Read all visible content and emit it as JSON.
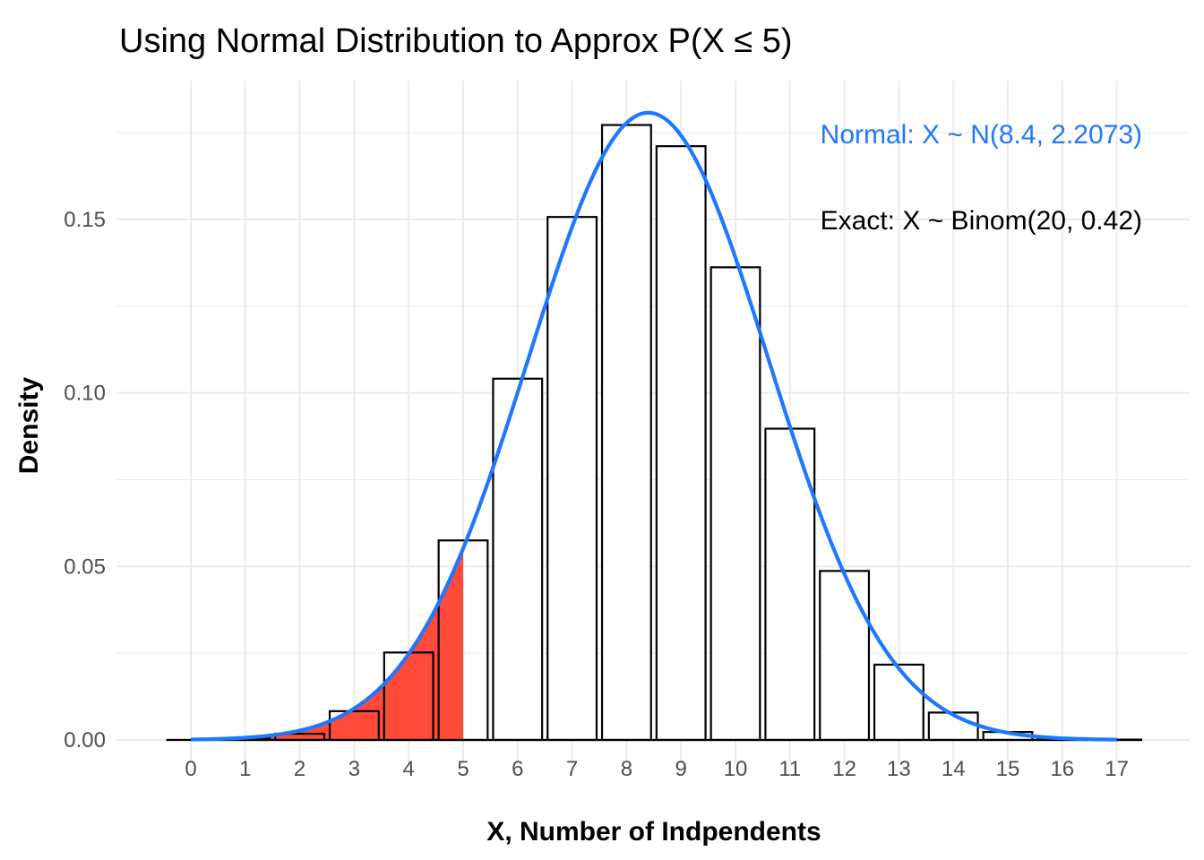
{
  "chart_data": {
    "type": "bar",
    "title": "Using Normal Distribution to Approx P(X ≤ 5)",
    "xlabel": "X, Number of Indpendents",
    "ylabel": "Density",
    "categories": [
      "0",
      "1",
      "2",
      "3",
      "4",
      "5",
      "6",
      "7",
      "8",
      "9",
      "10",
      "11",
      "12",
      "13",
      "14",
      "15",
      "16",
      "17"
    ],
    "values": [
      0.0,
      0.0005,
      0.0018,
      0.0083,
      0.0252,
      0.0575,
      0.1041,
      0.1507,
      0.1772,
      0.1711,
      0.1362,
      0.0897,
      0.0487,
      0.0217,
      0.0079,
      0.0023,
      0.0005,
      0.0001
    ],
    "ylim": [
      0,
      0.19
    ],
    "yticks": [
      0.0,
      0.05,
      0.1,
      0.15
    ],
    "ytick_labels": [
      "0.00",
      "0.05",
      "0.10",
      "0.15"
    ],
    "xlim": [
      -0.5,
      17.5
    ],
    "normal_curve": {
      "mean": 8.4,
      "sd": 2.2073,
      "x_range": [
        0,
        17
      ]
    },
    "shaded_region": {
      "from": 0,
      "to": 5
    },
    "annotations": [
      {
        "text": "Normal: X ~ N(8.4, 2.2073)",
        "color": "#1e78ff"
      },
      {
        "text": "Exact: X ~ Binom(20, 0.42)",
        "color": "#000000"
      }
    ],
    "colors": {
      "curve": "#1e78ff",
      "shade": "#ff4b37",
      "bar_fill": "#ffffff",
      "bar_stroke": "#000000",
      "grid": "#ebebeb"
    },
    "grid": true,
    "legend": "none"
  }
}
